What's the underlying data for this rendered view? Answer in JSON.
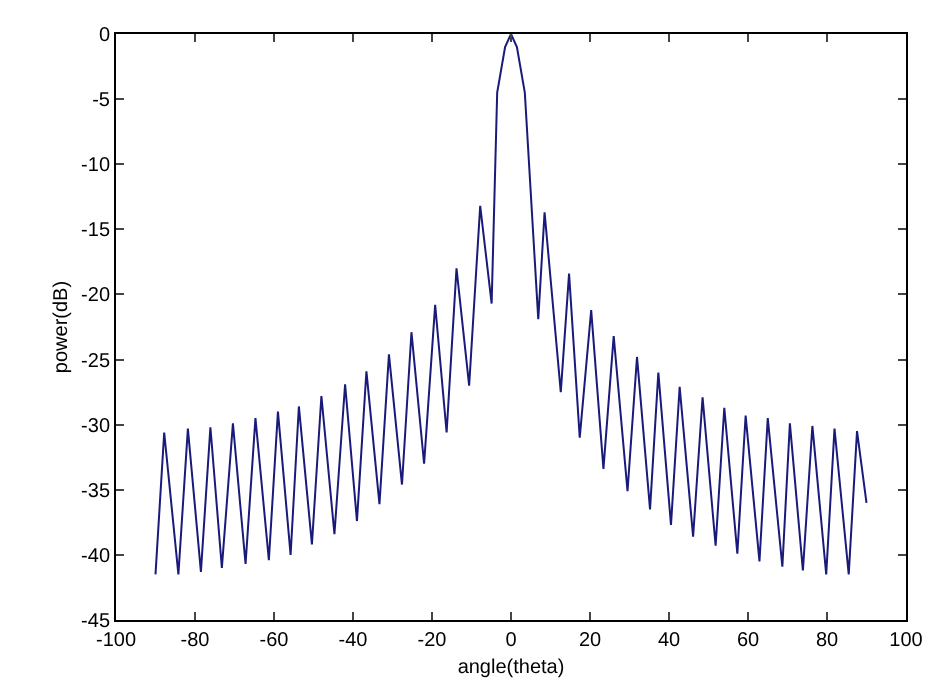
{
  "chart_data": {
    "type": "line",
    "xlabel": "angle(theta)",
    "ylabel": "power(dB)",
    "x": [
      -90,
      -87.8,
      -84.2,
      -81.8,
      -78.5,
      -76.1,
      -73.2,
      -70.4,
      -67.2,
      -64.7,
      -61.3,
      -59,
      -55.8,
      -53.7,
      -50.4,
      -48,
      -44.7,
      -42,
      -39,
      -36.6,
      -33.3,
      -30.9,
      -27.6,
      -25.2,
      -22,
      -19.2,
      -16.3,
      -13.8,
      -10.6,
      -7.8,
      -4.9,
      -3.5,
      -1.5,
      0,
      1.5,
      3.5,
      6.9,
      8.5,
      12.6,
      14.7,
      17.4,
      20.3,
      23.4,
      26,
      29.5,
      31.9,
      35.2,
      37.3,
      40.5,
      42.7,
      46.1,
      48.5,
      51.8,
      54,
      57.3,
      59.4,
      62.9,
      65,
      68.7,
      70.6,
      73.9,
      76.3,
      79.8,
      81.9,
      85.5,
      87.6,
      90
    ],
    "series": [
      {
        "color": "#1a1a7a",
        "values": [
          -41.5,
          -30.6,
          -41.5,
          -30.3,
          -41.3,
          -30.2,
          -41,
          -29.9,
          -40.7,
          -29.5,
          -40.4,
          -29,
          -40,
          -28.6,
          -39.2,
          -27.8,
          -38.4,
          -26.9,
          -37.4,
          -25.9,
          -36.1,
          -24.6,
          -34.6,
          -22.9,
          -33,
          -20.8,
          -30.6,
          -18,
          -27,
          -13.2,
          -20.7,
          -4.5,
          -1,
          0,
          -1,
          -4.5,
          -21.9,
          -13.7,
          -27.5,
          -18.4,
          -31,
          -21.2,
          -33.4,
          -23.2,
          -35.1,
          -24.8,
          -36.5,
          -26,
          -37.7,
          -27.1,
          -38.6,
          -27.9,
          -39.3,
          -28.7,
          -39.9,
          -29.3,
          -40.5,
          -29.5,
          -40.9,
          -29.9,
          -41.2,
          -30.1,
          -41.5,
          -30.3,
          -41.5,
          -30.5,
          -36
        ]
      }
    ],
    "xlim": [
      -100,
      100
    ],
    "xticks": [
      -100,
      -80,
      -60,
      -40,
      -20,
      0,
      20,
      40,
      60,
      80,
      100
    ],
    "ylim": [
      -45,
      0
    ],
    "yticks": [
      -45,
      -40,
      -35,
      -30,
      -25,
      -20,
      -15,
      -10,
      -5,
      0
    ],
    "grid": false,
    "marker": "none",
    "line_style": "solid"
  }
}
